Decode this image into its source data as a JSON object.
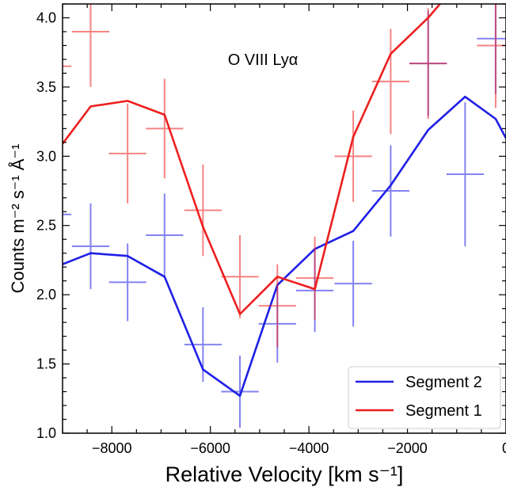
{
  "chart_data": {
    "type": "line",
    "annotation": "O VIII Lyα",
    "xlabel": "Relative Velocity [km s⁻¹]",
    "ylabel": "Counts m⁻² s⁻¹ Å⁻¹",
    "xlim": [
      -9000,
      0
    ],
    "ylim": [
      1.0,
      4.1
    ],
    "xticks": [
      -8000,
      -6000,
      -4000,
      -2000,
      0
    ],
    "xtick_labels": [
      "−8000",
      "−6000",
      "−4000",
      "−2000",
      "0"
    ],
    "yticks": [
      1.0,
      1.5,
      2.0,
      2.5,
      3.0,
      3.5,
      4.0
    ],
    "ytick_labels": [
      "1.0",
      "1.5",
      "2.0",
      "2.5",
      "3.0",
      "3.5",
      "4.0"
    ],
    "legend_position": "lower-right",
    "series": [
      {
        "name": "Segment 2",
        "color": "#1f1fe6",
        "model_x": [
          -9000,
          -8430,
          -7680,
          -6930,
          -6150,
          -5400,
          -4640,
          -3880,
          -3100,
          -2340,
          -1580,
          -830,
          -210,
          0
        ],
        "model_y": [
          2.22,
          2.3,
          2.28,
          2.13,
          1.46,
          1.27,
          2.07,
          2.33,
          2.46,
          2.79,
          3.19,
          3.43,
          3.27,
          3.13
        ],
        "data_x": [
          -9200,
          -8430,
          -7680,
          -6930,
          -6150,
          -5400,
          -4640,
          -3880,
          -3100,
          -2340,
          -1580,
          -830,
          -210
        ],
        "data_y": [
          2.58,
          2.35,
          2.09,
          2.43,
          1.64,
          1.3,
          1.79,
          2.03,
          2.08,
          2.75,
          3.67,
          2.87,
          3.85
        ],
        "data_yerr": [
          0.28,
          0.31,
          0.28,
          0.3,
          0.27,
          0.26,
          0.28,
          0.3,
          0.31,
          0.33,
          0.38,
          0.52,
          0.4
        ],
        "data_xerr": 380
      },
      {
        "name": "Segment 1",
        "color": "#ee1f1f",
        "model_x": [
          -9000,
          -8430,
          -7680,
          -6930,
          -6150,
          -5400,
          -4640,
          -3880,
          -3100,
          -2340,
          -1580,
          -1100
        ],
        "model_y": [
          3.09,
          3.36,
          3.4,
          3.3,
          2.49,
          1.86,
          2.13,
          2.04,
          3.14,
          3.74,
          4.0,
          4.2
        ],
        "data_x": [
          -9200,
          -8430,
          -7680,
          -6930,
          -6150,
          -5400,
          -4640,
          -3880,
          -3100,
          -2340,
          -1580,
          -210
        ],
        "data_y": [
          3.65,
          3.9,
          3.02,
          3.2,
          2.61,
          2.13,
          1.92,
          2.12,
          3.0,
          3.54,
          3.67,
          3.8
        ],
        "data_yerr": [
          0.35,
          0.4,
          0.36,
          0.36,
          0.33,
          0.3,
          0.3,
          0.3,
          0.33,
          0.38,
          0.4,
          0.45
        ],
        "data_xerr": 380
      }
    ]
  }
}
